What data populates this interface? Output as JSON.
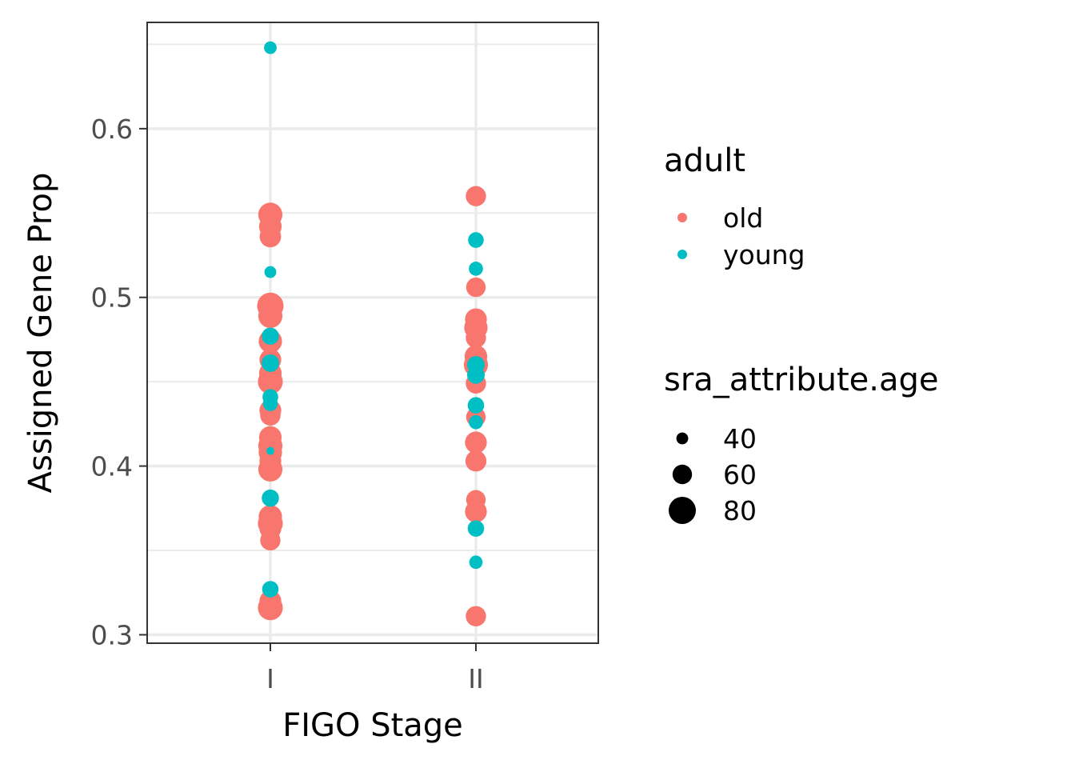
{
  "chart_data": {
    "type": "scatter",
    "xlabel": "FIGO Stage",
    "ylabel": "Assigned Gene Prop",
    "categories": [
      "I",
      "II"
    ],
    "y_ticks": [
      0.3,
      0.4,
      0.5,
      0.6
    ],
    "y_tick_labels": [
      "0.3",
      "0.4",
      "0.5",
      "0.6"
    ],
    "ylim": [
      0.295,
      0.663
    ],
    "grid": true,
    "legend_position": "right",
    "color_legend": {
      "title": "adult",
      "entries": [
        {
          "label": "old",
          "color": "#F8766D"
        },
        {
          "label": "young",
          "color": "#00BFC4"
        }
      ]
    },
    "size_legend": {
      "title": "sra_attribute.age",
      "entries": [
        {
          "label": "40",
          "value": 40
        },
        {
          "label": "60",
          "value": 60
        },
        {
          "label": "80",
          "value": 80
        }
      ]
    },
    "series": [
      {
        "name": "old",
        "color": "#F8766D",
        "points": [
          {
            "x": "I",
            "y": 0.549,
            "age": 72
          },
          {
            "x": "I",
            "y": 0.542,
            "age": 68
          },
          {
            "x": "I",
            "y": 0.536,
            "age": 65
          },
          {
            "x": "I",
            "y": 0.495,
            "age": 78
          },
          {
            "x": "I",
            "y": 0.489,
            "age": 72
          },
          {
            "x": "I",
            "y": 0.474,
            "age": 70
          },
          {
            "x": "I",
            "y": 0.463,
            "age": 66
          },
          {
            "x": "I",
            "y": 0.455,
            "age": 68
          },
          {
            "x": "I",
            "y": 0.45,
            "age": 74
          },
          {
            "x": "I",
            "y": 0.433,
            "age": 66
          },
          {
            "x": "I",
            "y": 0.43,
            "age": 62
          },
          {
            "x": "I",
            "y": 0.417,
            "age": 68
          },
          {
            "x": "I",
            "y": 0.412,
            "age": 72
          },
          {
            "x": "I",
            "y": 0.408,
            "age": 70
          },
          {
            "x": "I",
            "y": 0.403,
            "age": 66
          },
          {
            "x": "I",
            "y": 0.398,
            "age": 72
          },
          {
            "x": "I",
            "y": 0.37,
            "age": 70
          },
          {
            "x": "I",
            "y": 0.366,
            "age": 74
          },
          {
            "x": "I",
            "y": 0.363,
            "age": 66
          },
          {
            "x": "I",
            "y": 0.356,
            "age": 62
          },
          {
            "x": "I",
            "y": 0.32,
            "age": 66
          },
          {
            "x": "I",
            "y": 0.316,
            "age": 74
          },
          {
            "x": "II",
            "y": 0.56,
            "age": 62
          },
          {
            "x": "II",
            "y": 0.506,
            "age": 60
          },
          {
            "x": "II",
            "y": 0.487,
            "age": 66
          },
          {
            "x": "II",
            "y": 0.482,
            "age": 70
          },
          {
            "x": "II",
            "y": 0.476,
            "age": 62
          },
          {
            "x": "II",
            "y": 0.465,
            "age": 68
          },
          {
            "x": "II",
            "y": 0.46,
            "age": 72
          },
          {
            "x": "II",
            "y": 0.449,
            "age": 62
          },
          {
            "x": "II",
            "y": 0.429,
            "age": 60
          },
          {
            "x": "II",
            "y": 0.414,
            "age": 66
          },
          {
            "x": "II",
            "y": 0.403,
            "age": 64
          },
          {
            "x": "II",
            "y": 0.38,
            "age": 60
          },
          {
            "x": "II",
            "y": 0.373,
            "age": 66
          },
          {
            "x": "II",
            "y": 0.311,
            "age": 62
          }
        ]
      },
      {
        "name": "young",
        "color": "#00BFC4",
        "points": [
          {
            "x": "I",
            "y": 0.648,
            "age": 42
          },
          {
            "x": "I",
            "y": 0.515,
            "age": 40
          },
          {
            "x": "I",
            "y": 0.477,
            "age": 54
          },
          {
            "x": "I",
            "y": 0.461,
            "age": 55
          },
          {
            "x": "I",
            "y": 0.441,
            "age": 50
          },
          {
            "x": "I",
            "y": 0.437,
            "age": 48
          },
          {
            "x": "I",
            "y": 0.409,
            "age": 30
          },
          {
            "x": "I",
            "y": 0.381,
            "age": 54
          },
          {
            "x": "I",
            "y": 0.327,
            "age": 52
          },
          {
            "x": "II",
            "y": 0.534,
            "age": 50
          },
          {
            "x": "II",
            "y": 0.517,
            "age": 46
          },
          {
            "x": "II",
            "y": 0.46,
            "age": 55
          },
          {
            "x": "II",
            "y": 0.454,
            "age": 55
          },
          {
            "x": "II",
            "y": 0.436,
            "age": 52
          },
          {
            "x": "II",
            "y": 0.426,
            "age": 46
          },
          {
            "x": "II",
            "y": 0.363,
            "age": 52
          },
          {
            "x": "II",
            "y": 0.343,
            "age": 44
          }
        ]
      }
    ]
  }
}
